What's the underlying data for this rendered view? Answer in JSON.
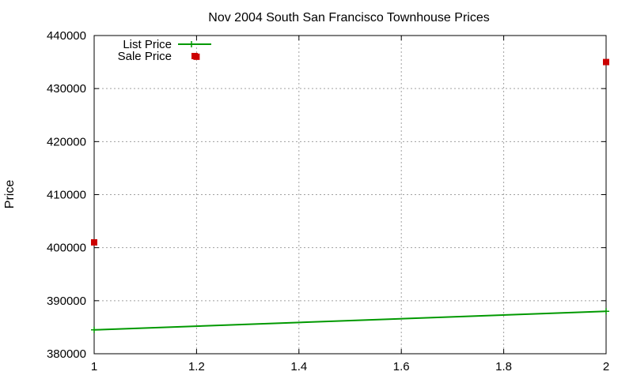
{
  "chart_data": {
    "type": "line",
    "title": "Nov 2004 South San Francisco Townhouse Prices",
    "xlabel": "",
    "ylabel": "Price",
    "xlim": [
      1,
      2
    ],
    "ylim": [
      380000,
      440000
    ],
    "xticks": [
      "1",
      "1.2",
      "1.4",
      "1.6",
      "1.8",
      "2"
    ],
    "xtick_values": [
      1,
      1.2,
      1.4,
      1.6,
      1.8,
      2
    ],
    "yticks": [
      "380000",
      "390000",
      "400000",
      "410000",
      "420000",
      "430000",
      "440000"
    ],
    "ytick_values": [
      380000,
      390000,
      400000,
      410000,
      420000,
      430000,
      440000
    ],
    "grid": true,
    "legend_position": "top-left",
    "series": [
      {
        "name": "List Price",
        "style": "line",
        "color": "#009900",
        "x": [
          1,
          2
        ],
        "y": [
          384500,
          388000
        ]
      },
      {
        "name": "Sale Price",
        "style": "points",
        "color": "#cc0000",
        "x": [
          1,
          1.2,
          2
        ],
        "y": [
          401000,
          436000,
          435000
        ]
      }
    ]
  }
}
